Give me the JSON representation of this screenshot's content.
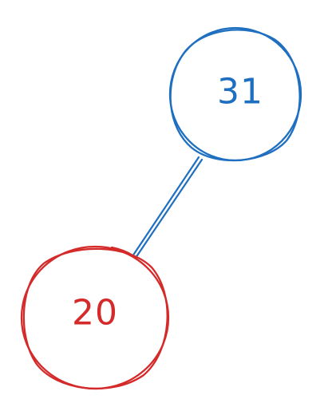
{
  "diagram": {
    "type": "binary-tree",
    "nodes": [
      {
        "id": "root",
        "label": "31",
        "color": "#1f6fc1"
      },
      {
        "id": "left-child",
        "label": "20",
        "color": "#d42a2a"
      }
    ],
    "edges": [
      {
        "from": "root",
        "to": "left-child",
        "color": "#1f6fc1"
      }
    ]
  }
}
